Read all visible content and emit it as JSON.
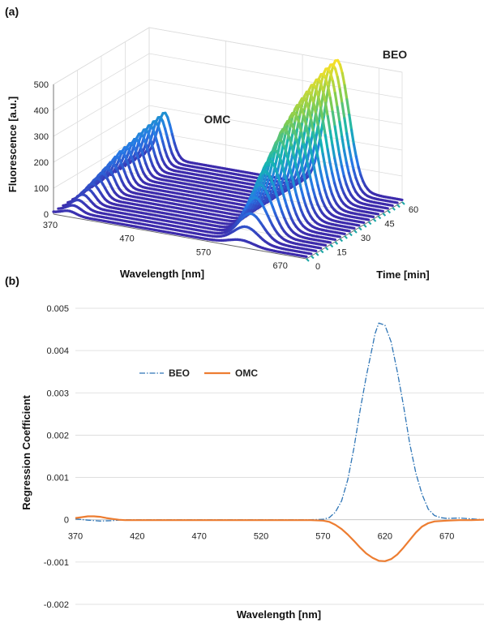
{
  "panel_a": {
    "label": "(a)",
    "zlabel": "Fluorescence [a.u.]",
    "xlabel": "Wavelength [nm]",
    "ylabel": "Time [min]",
    "z_ticks": [
      "0",
      "100",
      "200",
      "300",
      "400",
      "500"
    ],
    "x_ticks": [
      "370",
      "470",
      "570",
      "670"
    ],
    "y_ticks": [
      "0",
      "15",
      "30",
      "45",
      "60"
    ],
    "annotations": [
      "OMC",
      "BEO"
    ]
  },
  "panel_b": {
    "label": "(b)",
    "legend": [
      "BEO",
      "OMC"
    ]
  },
  "chart_data": [
    {
      "type": "line",
      "title": "",
      "xlabel": "Wavelength [nm]",
      "ylabel": "Time [min]",
      "zlabel": "Fluorescence [a.u.]",
      "xlim": [
        370,
        700
      ],
      "ylim": [
        0,
        60
      ],
      "zlim": [
        0,
        500
      ],
      "grid": true,
      "time_points": [
        0,
        3,
        6,
        9,
        12,
        15,
        18,
        21,
        24,
        27,
        30,
        33,
        36,
        39,
        42,
        45,
        48,
        51,
        54,
        57,
        60
      ],
      "omc_peak_wavelength": 390,
      "omc_peak_fluorescence_by_time": [
        15,
        25,
        35,
        45,
        55,
        65,
        75,
        85,
        95,
        105,
        115,
        125,
        130,
        135,
        140,
        150,
        155,
        160,
        165,
        170,
        175
      ],
      "beo_peak_wavelength": 615,
      "beo_peak_fluorescence_by_time": [
        20,
        60,
        100,
        150,
        190,
        230,
        260,
        290,
        320,
        350,
        370,
        390,
        410,
        425,
        440,
        455,
        465,
        475,
        485,
        490,
        495
      ],
      "annotations": [
        "OMC",
        "BEO"
      ]
    },
    {
      "type": "line",
      "title": "",
      "xlabel": "Wavelength [nm]",
      "ylabel": "Regression Coefficient",
      "xlim": [
        370,
        700
      ],
      "ylim": [
        -0.002,
        0.005
      ],
      "y_ticks": [
        -0.002,
        -0.001,
        0,
        0.001,
        0.002,
        0.003,
        0.004,
        0.005
      ],
      "y_tick_labels": [
        "-0.002",
        "-0.001",
        "0",
        "0.001",
        "0.002",
        "0.003",
        "0.004",
        "0.005"
      ],
      "x_ticks": [
        370,
        420,
        470,
        520,
        570,
        620,
        670
      ],
      "x_tick_labels": [
        "370",
        "420",
        "470",
        "520",
        "570",
        "620",
        "670"
      ],
      "grid": true,
      "legend_position": "upper-left",
      "series": [
        {
          "name": "BEO",
          "color": "#2e75b6",
          "style": "dash-dot",
          "x": [
            370,
            380,
            390,
            400,
            410,
            420,
            440,
            470,
            500,
            530,
            560,
            570,
            575,
            580,
            585,
            590,
            595,
            600,
            605,
            610,
            612,
            615,
            620,
            625,
            630,
            635,
            640,
            645,
            650,
            655,
            660,
            665,
            670,
            680,
            690,
            700
          ],
          "y": [
            2e-05,
            -1e-05,
            -3e-05,
            -2e-05,
            0.0,
            0.0,
            0.0,
            0.0,
            0.0,
            0.0,
            0.0,
            1e-05,
            5e-05,
            0.00018,
            0.00045,
            0.00095,
            0.0017,
            0.0026,
            0.0034,
            0.0041,
            0.0044,
            0.00465,
            0.0046,
            0.0042,
            0.0035,
            0.0027,
            0.0018,
            0.0011,
            0.0006,
            0.00025,
            0.0001,
            5e-05,
            3e-05,
            4e-05,
            2e-05,
            0.0
          ]
        },
        {
          "name": "OMC",
          "color": "#ed7d31",
          "style": "solid",
          "x": [
            370,
            375,
            380,
            385,
            390,
            395,
            400,
            405,
            410,
            420,
            440,
            470,
            500,
            530,
            560,
            570,
            575,
            580,
            585,
            590,
            595,
            600,
            605,
            610,
            615,
            620,
            625,
            630,
            635,
            640,
            645,
            650,
            655,
            660,
            670,
            680,
            690,
            700
          ],
          "y": [
            4e-05,
            6e-05,
            8e-05,
            8e-05,
            7e-05,
            4e-05,
            2e-05,
            0.0,
            -1e-05,
            -1e-05,
            -1e-05,
            -1e-05,
            -1e-05,
            -1e-05,
            -1e-05,
            -2e-05,
            -5e-05,
            -0.00012,
            -0.00022,
            -0.00035,
            -0.0005,
            -0.00066,
            -0.0008,
            -0.0009,
            -0.00097,
            -0.00098,
            -0.00093,
            -0.00082,
            -0.00066,
            -0.00048,
            -0.0003,
            -0.00016,
            -8e-05,
            -4e-05,
            -2e-05,
            -1e-05,
            -1e-05,
            0.0
          ]
        }
      ]
    }
  ]
}
